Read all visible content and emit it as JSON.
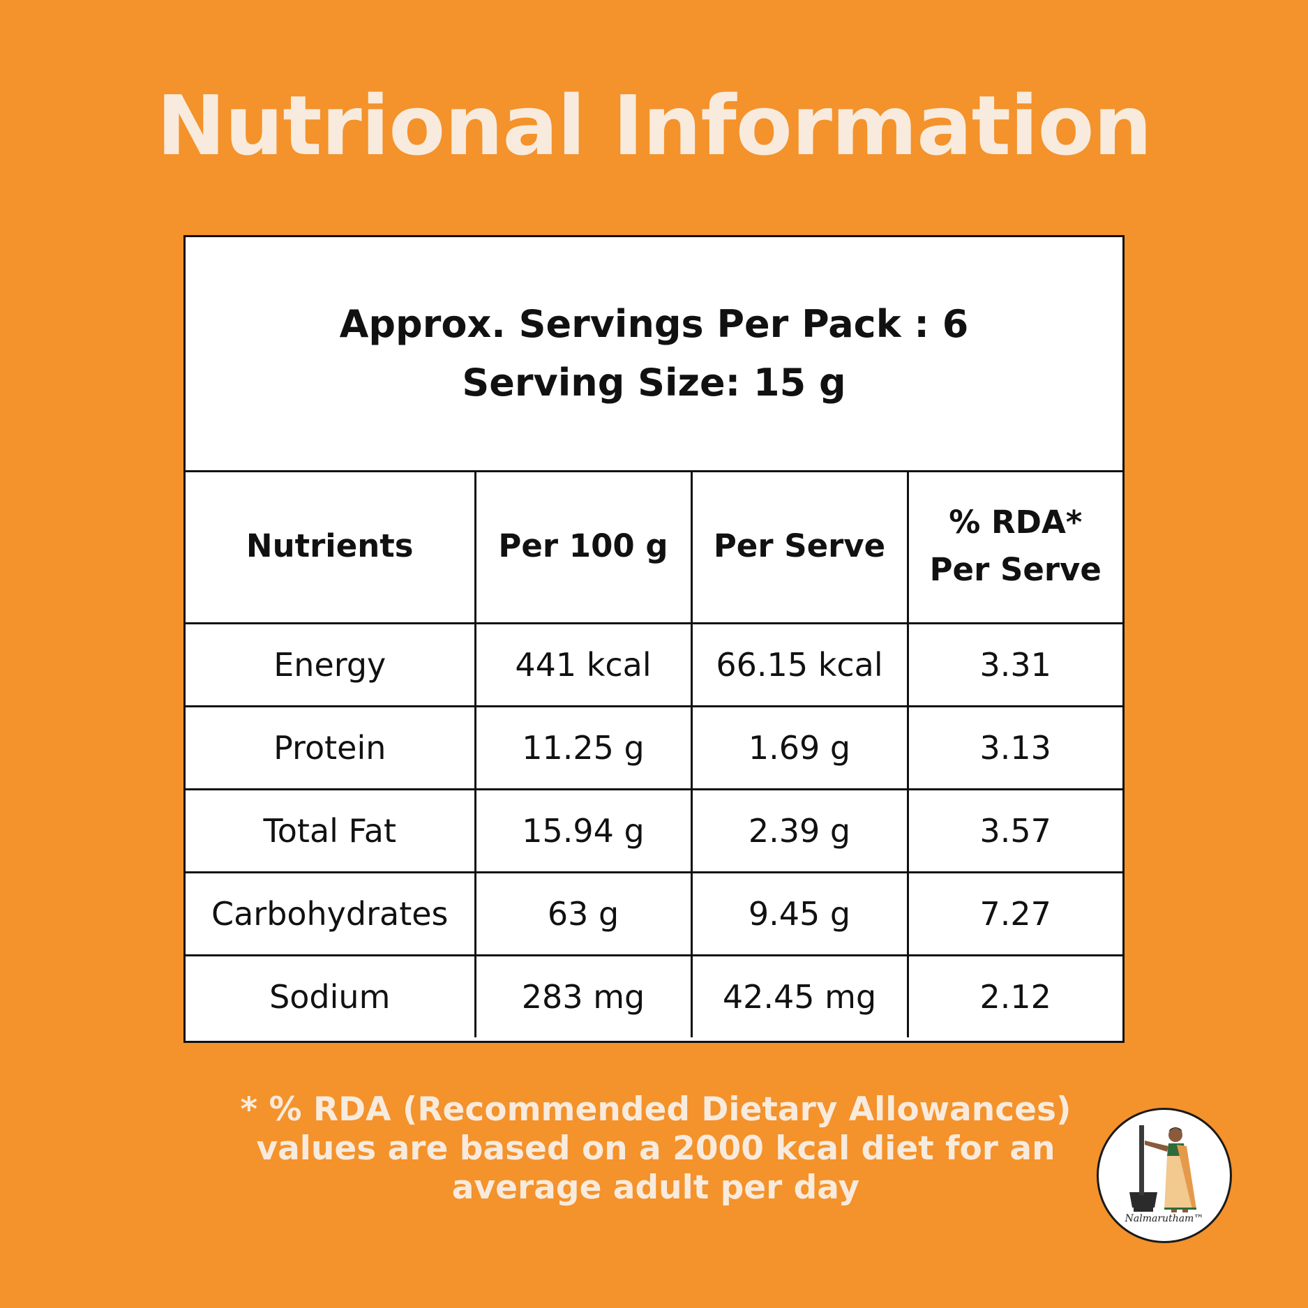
{
  "title": "Nutrional Information",
  "servings": {
    "per_pack": "Approx. Servings Per Pack : 6",
    "size": "Serving Size: 15 g"
  },
  "table": {
    "headers": [
      "Nutrients",
      "Per 100 g",
      "Per Serve"
    ],
    "rda_header_line1": "% RDA*",
    "rda_header_line2": "Per Serve",
    "rows": [
      [
        "Energy",
        "441 kcal",
        "66.15 kcal",
        "3.31"
      ],
      [
        "Protein",
        "11.25 g",
        "1.69 g",
        "3.13"
      ],
      [
        "Total Fat",
        "15.94 g",
        "2.39 g",
        "3.57"
      ],
      [
        "Carbohydrates",
        "63 g",
        "9.45 g",
        "7.27"
      ],
      [
        "Sodium",
        "283 mg",
        "42.45 mg",
        "2.12"
      ]
    ]
  },
  "footnote": {
    "line1": "* % RDA (Recommended Dietary Allowances)",
    "line2": "values are based on a 2000 kcal diet for an",
    "line3": "average adult per day"
  },
  "logo": {
    "brand": "Nalmarutham™"
  },
  "colors": {
    "background": "#F4922B",
    "title_text": "#F8EBDD",
    "table_bg": "#FFFFFF",
    "table_text": "#111111"
  }
}
